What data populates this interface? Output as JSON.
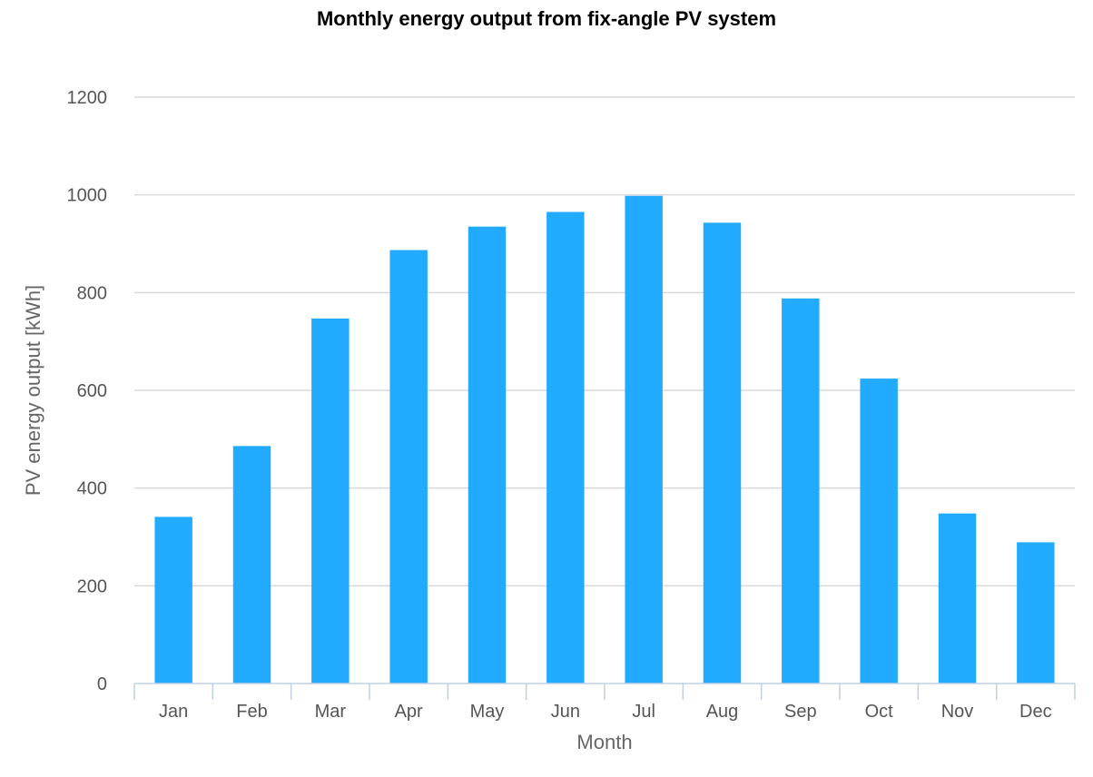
{
  "chart_data": {
    "type": "bar",
    "title": "Monthly energy output from fix-angle PV system",
    "xlabel": "Month",
    "ylabel": "PV energy output [kWh]",
    "categories": [
      "Jan",
      "Feb",
      "Mar",
      "Apr",
      "May",
      "Jun",
      "Jul",
      "Aug",
      "Sep",
      "Oct",
      "Nov",
      "Dec"
    ],
    "values": [
      341,
      486,
      747,
      887,
      935,
      965,
      998,
      943,
      788,
      624,
      348,
      289
    ],
    "ylim": [
      0,
      1200
    ],
    "yticks": [
      "0",
      "200",
      "400",
      "600",
      "800",
      "1000",
      "1200"
    ],
    "ytick_values": [
      0,
      200,
      400,
      600,
      800,
      1000,
      1200
    ],
    "grid": true,
    "legend": "none",
    "bar_color": "#22aaff"
  }
}
